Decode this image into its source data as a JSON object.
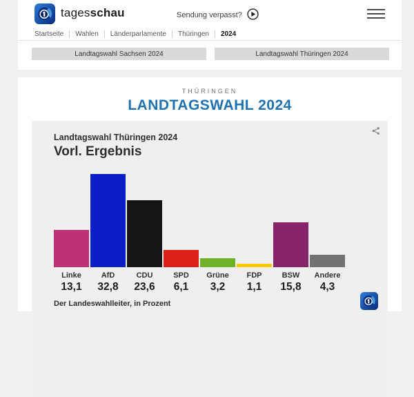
{
  "header": {
    "brand": {
      "regular": "tages",
      "bold": "schau"
    },
    "watch_link_label": "Sendung verpasst?"
  },
  "breadcrumb": {
    "items": [
      "Startseite",
      "Wahlen",
      "Länderparlamente",
      "Thüringen",
      "2024"
    ]
  },
  "nav_tabs": [
    {
      "label": "Landtagswahl Sachsen 2024"
    },
    {
      "label": "Landtagswahl Thüringen 2024"
    }
  ],
  "section": {
    "kicker": "THÜRINGEN",
    "title": "LANDTAGSWAHL 2024",
    "title_color": "#1f72b2"
  },
  "chart_data": {
    "type": "bar",
    "title": "Landtagswahl Thüringen 2024",
    "subtitle": "Vorl. Ergebnis",
    "source": "Der Landeswahlleiter, in Prozent",
    "unit": "Prozent",
    "categories": [
      "Linke",
      "AfD",
      "CDU",
      "SPD",
      "Grüne",
      "FDP",
      "BSW",
      "Andere"
    ],
    "values": [
      13.1,
      32.8,
      23.6,
      6.1,
      3.2,
      1.1,
      15.8,
      4.3
    ],
    "display_values": [
      "13,1",
      "32,8",
      "23,6",
      "6,1",
      "3,2",
      "1,1",
      "15,8",
      "4,3"
    ],
    "colors": [
      "#be3075",
      "#0b1ec8",
      "#151515",
      "#dc2019",
      "#6fb22a",
      "#fccc00",
      "#872468",
      "#717274"
    ],
    "ylim": [
      0,
      34
    ],
    "grid": false,
    "legend": "none"
  }
}
